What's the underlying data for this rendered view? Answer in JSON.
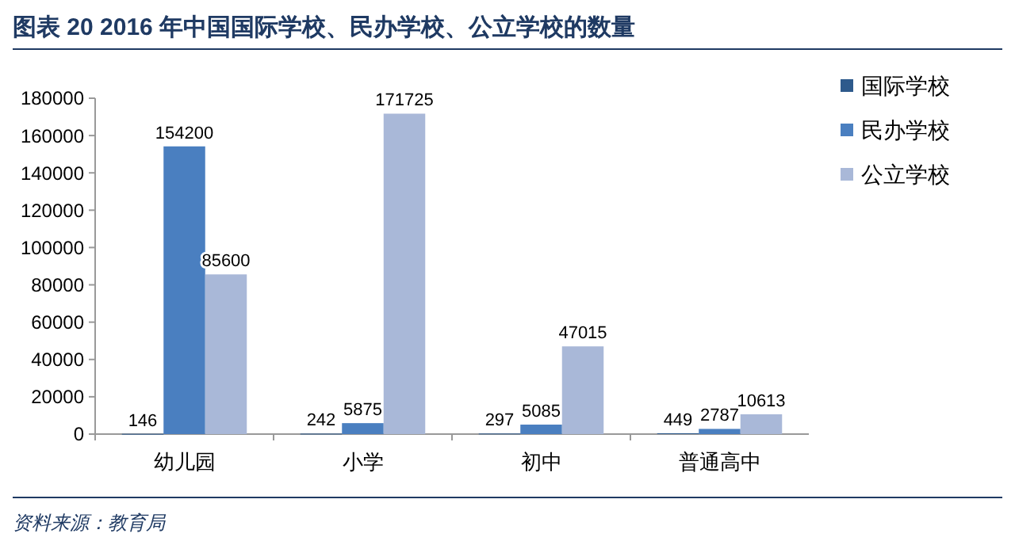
{
  "chart_data": {
    "type": "bar",
    "title": "图表 20 2016 年中国国际学校、民办学校、公立学校的数量",
    "categories": [
      "幼儿园",
      "小学",
      "初中",
      "普通高中"
    ],
    "series": [
      {
        "name": "国际学校",
        "color": "#2e5a8c",
        "values": [
          146,
          242,
          297,
          449
        ]
      },
      {
        "name": "民办学校",
        "color": "#4a7fc0",
        "values": [
          154200,
          5875,
          5085,
          2787
        ]
      },
      {
        "name": "公立学校",
        "color": "#a9b8d8",
        "values": [
          85600,
          171725,
          47015,
          10613
        ]
      }
    ],
    "ylim": [
      0,
      180000
    ],
    "yticks": [
      0,
      20000,
      40000,
      60000,
      80000,
      100000,
      120000,
      140000,
      160000,
      180000
    ],
    "data_labels": true,
    "legend": "top right",
    "grid": false,
    "annotations": [
      "资料来源：教育局"
    ]
  }
}
